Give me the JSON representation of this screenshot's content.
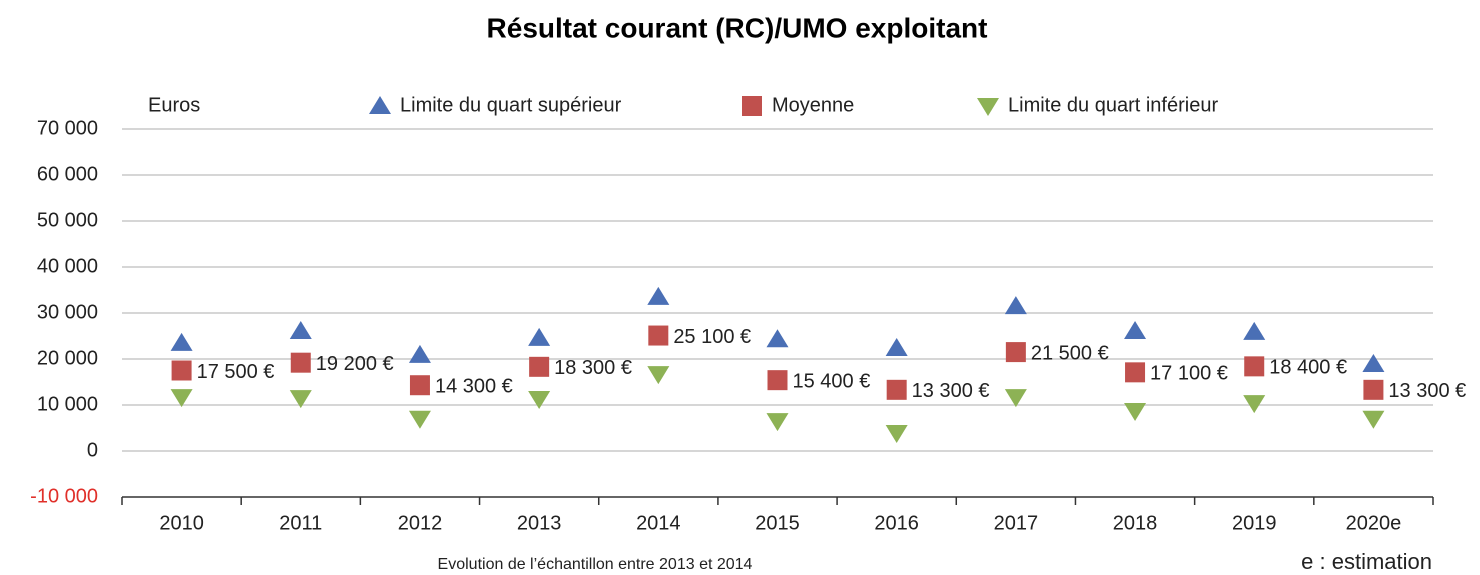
{
  "chart_data": {
    "type": "scatter",
    "title": "Résultat courant (RC)/UMO exploitant",
    "y_label": "Euros",
    "note": "Evolution de l’échantillon entre 2013 et 2014",
    "footnote": "e : estimation",
    "categories": [
      "2010",
      "2011",
      "2012",
      "2013",
      "2014",
      "2015",
      "2016",
      "2017",
      "2018",
      "2019",
      "2020e"
    ],
    "series": [
      {
        "name": "Limite du quart supérieur",
        "color": "#4a6fb5",
        "marker": "triangle-up",
        "values": [
          23500,
          26100,
          20900,
          24600,
          33500,
          24300,
          22400,
          31500,
          26100,
          25900,
          18900
        ]
      },
      {
        "name": "Moyenne",
        "color": "#c0504d",
        "marker": "square",
        "values": [
          17500,
          19200,
          14300,
          18300,
          25100,
          15400,
          13300,
          21500,
          17100,
          18400,
          13300
        ],
        "value_labels": [
          "17 500 €",
          "19 200 €",
          "14 300 €",
          "18 300 €",
          "25 100 €",
          "15 400 €",
          "13 300 €",
          "21 500 €",
          "17 100 €",
          "18 400 €",
          "13 300 €"
        ]
      },
      {
        "name": "Limite du quart inférieur",
        "color": "#8db255",
        "marker": "triangle-down",
        "values": [
          11700,
          11500,
          7000,
          11300,
          16700,
          6500,
          3900,
          11700,
          8700,
          10400,
          7000
        ]
      }
    ],
    "ylim": [
      -10000,
      70000
    ],
    "yticks": [
      {
        "value": -10000,
        "label": "-10 000"
      },
      0,
      {
        "value": 10000,
        "label": "10 000"
      },
      {
        "value": 20000,
        "label": "20 000"
      },
      {
        "value": 30000,
        "label": "30 000"
      },
      {
        "value": 40000,
        "label": "40 000"
      },
      {
        "value": 50000,
        "label": "50 000"
      },
      {
        "value": 60000,
        "label": "60 000"
      },
      {
        "value": 70000,
        "label": "70 000"
      }
    ],
    "grid": true
  }
}
